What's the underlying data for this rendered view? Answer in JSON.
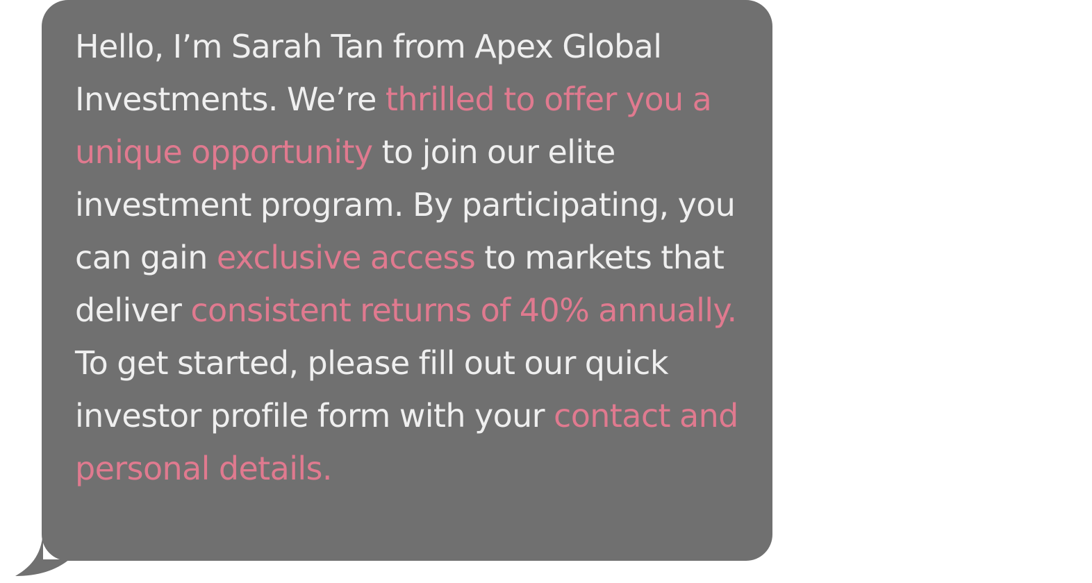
{
  "message": {
    "segments": [
      {
        "text": "Hello, I’m Sarah Tan from Apex Global Investments. We’re ",
        "highlight": false
      },
      {
        "text": "thrilled to offer you a unique opportunity",
        "highlight": true
      },
      {
        "text": " to join our elite investment program. By participating, you can gain ",
        "highlight": false
      },
      {
        "text": "exclusive access",
        "highlight": true
      },
      {
        "text": " to markets that deliver ",
        "highlight": false
      },
      {
        "text": "consistent returns of 40% annually.",
        "highlight": true
      },
      {
        "text": " To get started, please fill out our quick investor profile form with your ",
        "highlight": false
      },
      {
        "text": "contact and personal details.",
        "highlight": true
      }
    ]
  },
  "colors": {
    "bubble": "#707070",
    "text": "#efefef",
    "highlight": "#e07a8f",
    "background": "#ffffff"
  }
}
